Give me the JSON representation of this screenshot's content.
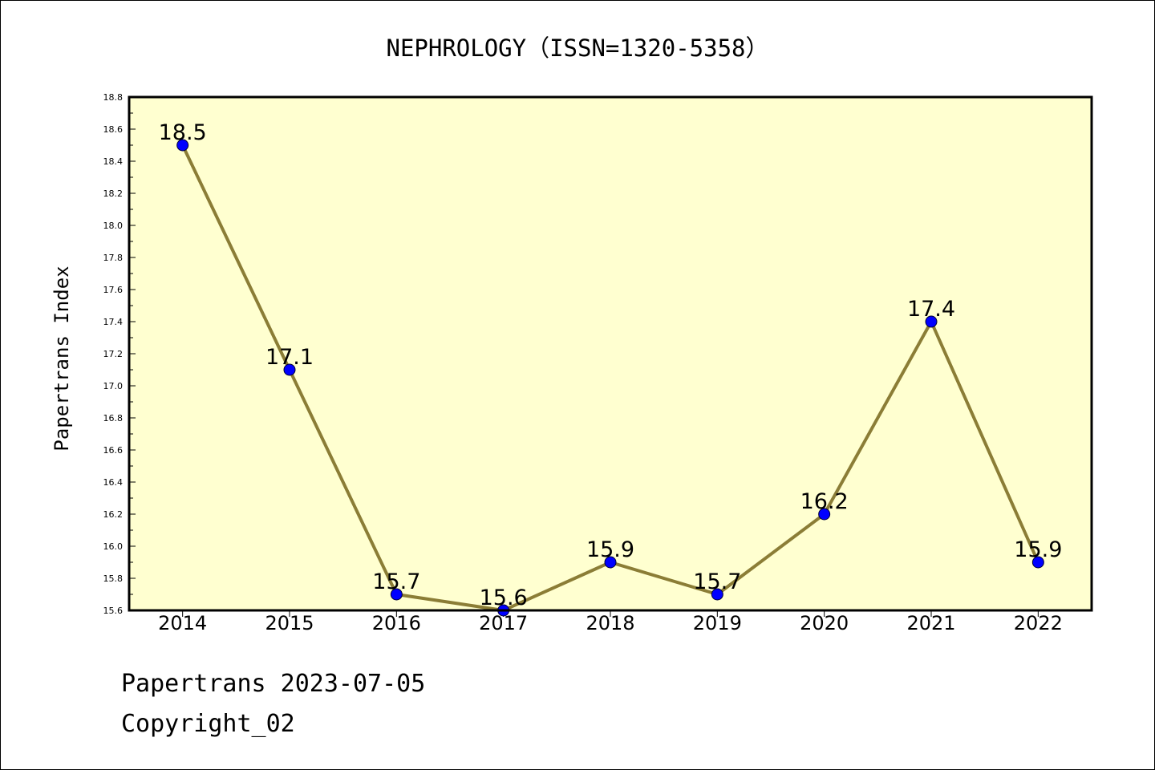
{
  "chart_data": {
    "type": "line",
    "title": "NEPHROLOGY（ISSN=1320-5358）",
    "xlabel": "",
    "ylabel": "Papertrans Index",
    "categories": [
      "2014",
      "2015",
      "2016",
      "2017",
      "2018",
      "2019",
      "2020",
      "2021",
      "2022"
    ],
    "series": [
      {
        "values": [
          18.5,
          17.1,
          15.7,
          15.6,
          15.9,
          15.7,
          16.2,
          17.4,
          15.9
        ]
      }
    ],
    "data_labels": [
      "18.5",
      "17.1",
      "15.7",
      "15.6",
      "15.9",
      "15.7",
      "16.2",
      "17.4",
      "15.9"
    ],
    "ylim": [
      15.6,
      18.8
    ],
    "yticks": [
      "15.6",
      "15.8",
      "16.0",
      "16.2",
      "16.4",
      "16.6",
      "16.8",
      "17.0",
      "17.2",
      "17.4",
      "17.6",
      "17.8",
      "18.0",
      "18.2",
      "18.4",
      "18.6",
      "18.8"
    ],
    "grid": false,
    "colors": {
      "plot_background": "#FFFFD0",
      "line": "#8B7D36",
      "marker": "#0000FF",
      "axis": "#000000"
    }
  },
  "footer": {
    "line1": "Papertrans 2023-07-05",
    "line2": "Copyright_02"
  }
}
